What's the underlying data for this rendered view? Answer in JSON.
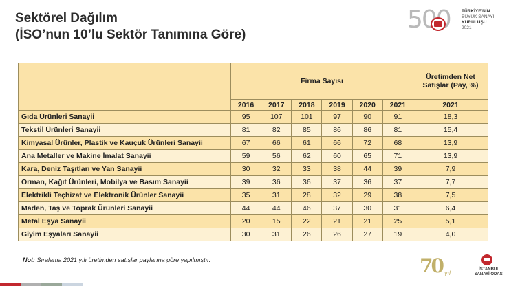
{
  "title_line1": "Sektörel Dağılım",
  "title_line2": "(İSO’nun 10’lu Sektör Tanımına Göre)",
  "header_logo": {
    "number": "500",
    "lines": [
      "TÜRKİYE'NİN",
      "BÜYÜK SANAYİ",
      "KURULUŞU",
      "2021"
    ]
  },
  "table": {
    "group_header_firms": "Firma Sayısı",
    "group_header_net": "Üretimden Net Satışlar (Pay, %)",
    "years": [
      "2016",
      "2017",
      "2018",
      "2019",
      "2020",
      "2021"
    ],
    "net_year": "2021",
    "rows": [
      {
        "name": "Gıda Ürünleri Sanayii",
        "counts": [
          "95",
          "107",
          "101",
          "97",
          "90",
          "91"
        ],
        "net": "18,3"
      },
      {
        "name": "Tekstil Ürünleri Sanayii",
        "counts": [
          "81",
          "82",
          "85",
          "86",
          "86",
          "81"
        ],
        "net": "15,4"
      },
      {
        "name": "Kimyasal Ürünler, Plastik ve Kauçuk Ürünleri Sanayii",
        "counts": [
          "67",
          "66",
          "61",
          "66",
          "72",
          "68"
        ],
        "net": "13,9"
      },
      {
        "name": "Ana Metaller ve Makine İmalat Sanayii",
        "counts": [
          "59",
          "56",
          "62",
          "60",
          "65",
          "71"
        ],
        "net": "13,9"
      },
      {
        "name": "Kara, Deniz Taşıtları ve Yan Sanayii",
        "counts": [
          "30",
          "32",
          "33",
          "38",
          "44",
          "39"
        ],
        "net": "7,9"
      },
      {
        "name": "Orman, Kağıt Ürünleri, Mobilya ve Basım Sanayii",
        "counts": [
          "39",
          "36",
          "36",
          "37",
          "36",
          "37"
        ],
        "net": "7,7"
      },
      {
        "name": "Elektrikli Teçhizat ve Elektronik Ürünler Sanayii",
        "counts": [
          "35",
          "31",
          "28",
          "32",
          "29",
          "38"
        ],
        "net": "7,5"
      },
      {
        "name": "Maden, Taş ve Toprak Ürünleri Sanayii",
        "counts": [
          "44",
          "44",
          "46",
          "37",
          "30",
          "31"
        ],
        "net": "6,4"
      },
      {
        "name": "Metal Eşya Sanayii",
        "counts": [
          "20",
          "15",
          "22",
          "21",
          "21",
          "25"
        ],
        "net": "5,1"
      },
      {
        "name": "Giyim Eşyaları Sanayii",
        "counts": [
          "30",
          "31",
          "26",
          "26",
          "27",
          "19"
        ],
        "net": "4,0"
      }
    ]
  },
  "note_label": "Not:",
  "note_text": " Sıralama 2021 yılı üretimden satışlar paylarına göre yapılmıştır.",
  "footer_logo_70": {
    "number": "70",
    "suffix": "yıl"
  },
  "footer_iso": {
    "line1": "İSTANBUL",
    "line2": "SANAYİ ODASI"
  },
  "colors": {
    "row_dark": "#fbe3a9",
    "row_light": "#fdf1d3",
    "border": "#9c8d5d",
    "accent_red": "#c2282e",
    "bottom_bar": [
      "#c2282e",
      "#b0b0b0",
      "#9aa89a",
      "#cbd5e0"
    ]
  }
}
